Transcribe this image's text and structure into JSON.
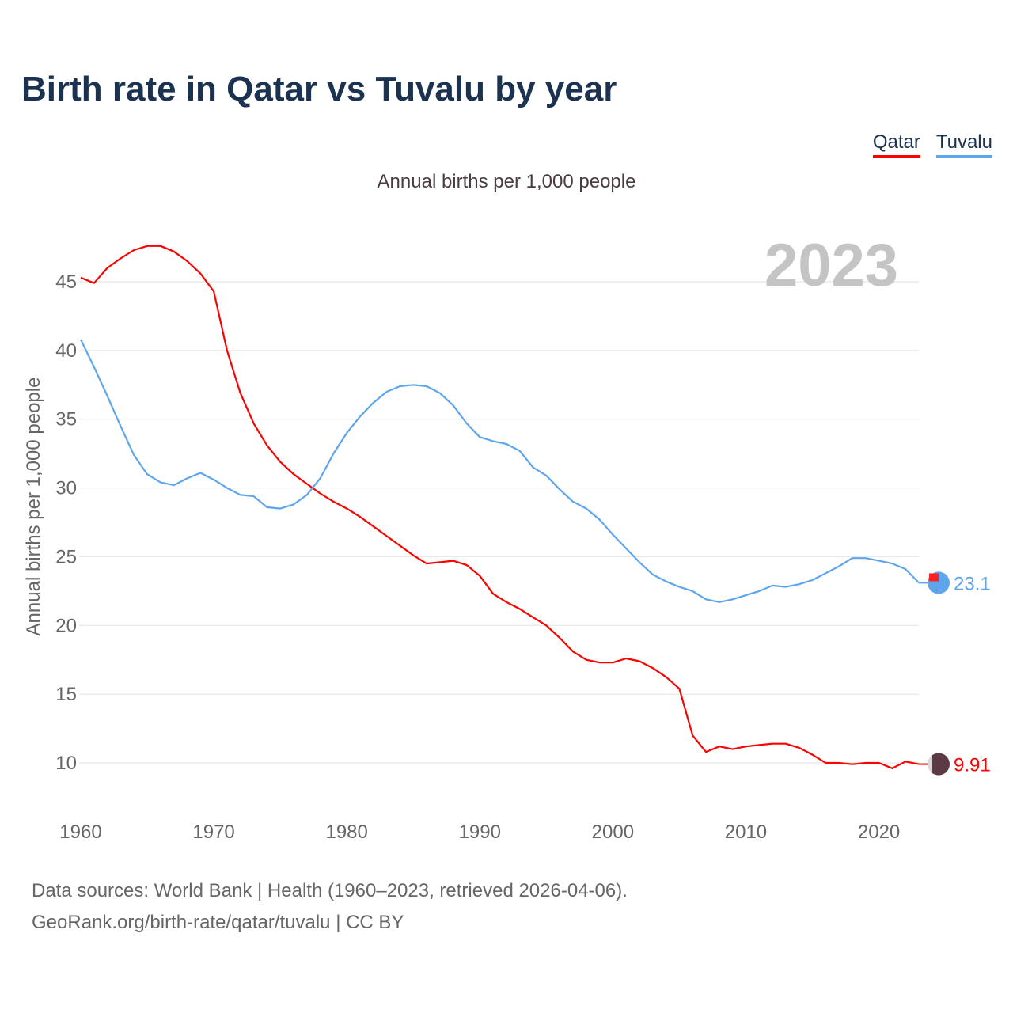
{
  "title": "Birth rate in Qatar vs Tuvalu by year",
  "subtitle": "Annual births per 1,000 people",
  "current_year": "2023",
  "legend": [
    {
      "label": "Qatar",
      "color": "#ff0000"
    },
    {
      "label": "Tuvalu",
      "color": "#5ea5ec"
    }
  ],
  "footer": {
    "line1": "Data sources: World Bank | Health (1960–2023, retrieved 2026-04-06).",
    "line2": "GeoRank.org/birth-rate/qatar/tuvalu | CC BY"
  },
  "chart_data": {
    "type": "line",
    "title": "Birth rate in Qatar vs Tuvalu by year",
    "xlabel": "",
    "ylabel": "Annual births per 1,000 people",
    "xlim": [
      1960,
      2023
    ],
    "ylim": [
      10,
      45
    ],
    "xticks": [
      1960,
      1970,
      1980,
      1990,
      2000,
      2010,
      2020
    ],
    "yticks": [
      10,
      15,
      20,
      25,
      30,
      35,
      40,
      45
    ],
    "grid": true,
    "legend_position": "top-right",
    "x_start": 1960,
    "series": [
      {
        "name": "Qatar",
        "color": "#ff0000",
        "end_label": "9.91",
        "values": [
          45.3,
          44.9,
          46.0,
          46.7,
          47.3,
          47.6,
          47.6,
          47.2,
          46.5,
          45.6,
          44.3,
          40.0,
          36.9,
          34.7,
          33.1,
          31.9,
          31.0,
          30.3,
          29.6,
          29.0,
          28.5,
          27.9,
          27.2,
          26.5,
          25.8,
          25.1,
          24.5,
          24.6,
          24.7,
          24.4,
          23.6,
          22.3,
          21.7,
          21.2,
          20.6,
          20.0,
          19.1,
          18.1,
          17.5,
          17.3,
          17.3,
          17.6,
          17.4,
          16.9,
          16.25,
          15.4,
          12.0,
          10.8,
          11.2,
          11.0,
          11.2,
          11.3,
          11.4,
          11.4,
          11.1,
          10.6,
          10.0,
          10.0,
          9.9,
          10.0,
          10.0,
          9.6,
          10.1,
          9.91
        ]
      },
      {
        "name": "Tuvalu",
        "color": "#5ea5ec",
        "end_label": "23.1",
        "values": [
          40.8,
          38.8,
          36.7,
          34.5,
          32.4,
          31.0,
          30.4,
          30.2,
          30.7,
          31.1,
          30.6,
          30.0,
          29.5,
          29.4,
          28.6,
          28.5,
          28.8,
          29.5,
          30.7,
          32.5,
          34.0,
          35.2,
          36.2,
          37.0,
          37.4,
          37.5,
          37.4,
          36.9,
          36.0,
          34.7,
          33.7,
          33.4,
          33.2,
          32.7,
          31.5,
          30.9,
          29.9,
          29.0,
          28.5,
          27.7,
          26.6,
          25.6,
          24.6,
          23.7,
          23.2,
          22.8,
          22.5,
          21.9,
          21.7,
          21.9,
          22.2,
          22.5,
          22.9,
          22.8,
          23.0,
          23.3,
          23.8,
          24.3,
          24.9,
          24.9,
          24.7,
          24.5,
          24.1,
          23.1
        ]
      }
    ]
  }
}
